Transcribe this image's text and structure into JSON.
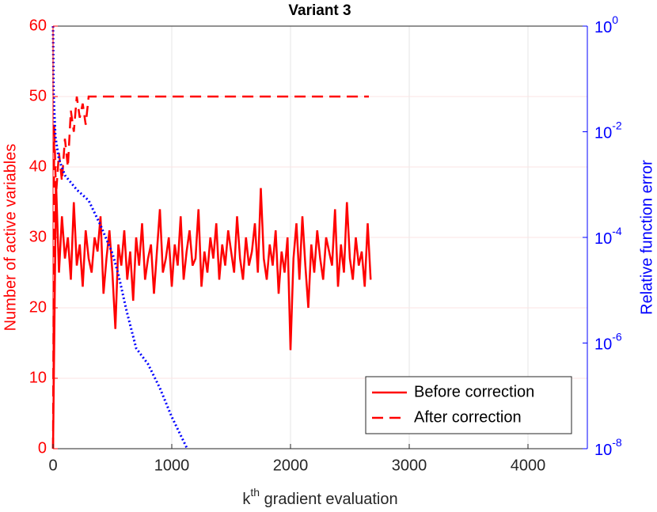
{
  "chart_data": {
    "type": "line",
    "title": "Variant 3",
    "xlabel": {
      "base": "k",
      "sup": "th",
      "rest": " gradient evaluation"
    },
    "ylabel": "Number of active variables",
    "y2label": "Relative function error",
    "xlim": [
      0,
      4500
    ],
    "xticks": [
      0,
      1000,
      2000,
      3000,
      4000
    ],
    "ylim": [
      0,
      60
    ],
    "yticks": [
      0,
      10,
      20,
      30,
      40,
      50,
      60
    ],
    "y2lim": [
      1e-08,
      1
    ],
    "y2scale": "log",
    "y2ticks": [
      {
        "value": 1,
        "label": "10",
        "exp": "0"
      },
      {
        "value": 0.01,
        "label": "10",
        "exp": "-2"
      },
      {
        "value": 0.0001,
        "label": "10",
        "exp": "-4"
      },
      {
        "value": 1e-06,
        "label": "10",
        "exp": "-6"
      },
      {
        "value": 1e-08,
        "label": "10",
        "exp": "-8"
      }
    ],
    "grid": true,
    "legend": "lower right",
    "series": [
      {
        "name": "Before correction",
        "color": "#ff0000",
        "dash": "solid",
        "x": [
          0,
          25,
          50,
          75,
          100,
          125,
          150,
          175,
          200,
          225,
          250,
          275,
          300,
          325,
          350,
          375,
          400,
          425,
          450,
          475,
          500,
          525,
          550,
          575,
          600,
          625,
          650,
          675,
          700,
          725,
          750,
          775,
          800,
          825,
          850,
          875,
          900,
          925,
          950,
          975,
          1000,
          1025,
          1050,
          1075,
          1100,
          1125,
          1150,
          1175,
          1200,
          1225,
          1250,
          1275,
          1300,
          1325,
          1350,
          1375,
          1400,
          1425,
          1450,
          1475,
          1500,
          1525,
          1550,
          1575,
          1600,
          1625,
          1650,
          1675,
          1700,
          1725,
          1750,
          1775,
          1800,
          1825,
          1850,
          1875,
          1900,
          1925,
          1950,
          1975,
          2000,
          2025,
          2050,
          2075,
          2100,
          2125,
          2150,
          2175,
          2200,
          2225,
          2250,
          2275,
          2300,
          2325,
          2350,
          2375,
          2400,
          2425,
          2450,
          2475,
          2500,
          2525,
          2550,
          2575,
          2600,
          2625,
          2650,
          2675
        ],
        "values": [
          0,
          38,
          25,
          33,
          27,
          30,
          24,
          35,
          26,
          29,
          23,
          31,
          27,
          25,
          30,
          28,
          33,
          22,
          27,
          31,
          25,
          17,
          29,
          26,
          31,
          24,
          28,
          21,
          30,
          26,
          32,
          24,
          27,
          29,
          22,
          28,
          34,
          25,
          27,
          30,
          23,
          29,
          26,
          33,
          24,
          28,
          31,
          26,
          27,
          34,
          23,
          28,
          25,
          30,
          27,
          32,
          24,
          29,
          26,
          31,
          28,
          25,
          33,
          27,
          24,
          30,
          26,
          28,
          32,
          25,
          37,
          27,
          24,
          29,
          26,
          31,
          22,
          28,
          25,
          30,
          14,
          27,
          32,
          24,
          33,
          26,
          20,
          29,
          25,
          31,
          27,
          24,
          30,
          28,
          26,
          34,
          23,
          29,
          25,
          35,
          27,
          24,
          30,
          26,
          28,
          23,
          32,
          24
        ]
      },
      {
        "name": "After correction",
        "color": "#ff0000",
        "dash": "dashed",
        "x": [
          0,
          10,
          25,
          50,
          75,
          100,
          125,
          150,
          175,
          200,
          225,
          250,
          275,
          300,
          325,
          2660
        ],
        "values": [
          0,
          46,
          36,
          42,
          38,
          44,
          40,
          48,
          45,
          50,
          47,
          49,
          46,
          50,
          50,
          50
        ]
      },
      {
        "color": "#0000ff",
        "dash": "dotted",
        "axis": "y2",
        "x": [
          0,
          5,
          20,
          50,
          100,
          200,
          300,
          400,
          500,
          550,
          620,
          700,
          800,
          900,
          1000,
          1130
        ],
        "values": [
          1,
          0.05,
          0.008,
          0.003,
          0.0015,
          0.0008,
          0.0005,
          0.00017,
          5e-05,
          2e-05,
          4e-06,
          8e-07,
          4e-07,
          1.4e-07,
          4e-08,
          1e-08
        ]
      }
    ]
  }
}
